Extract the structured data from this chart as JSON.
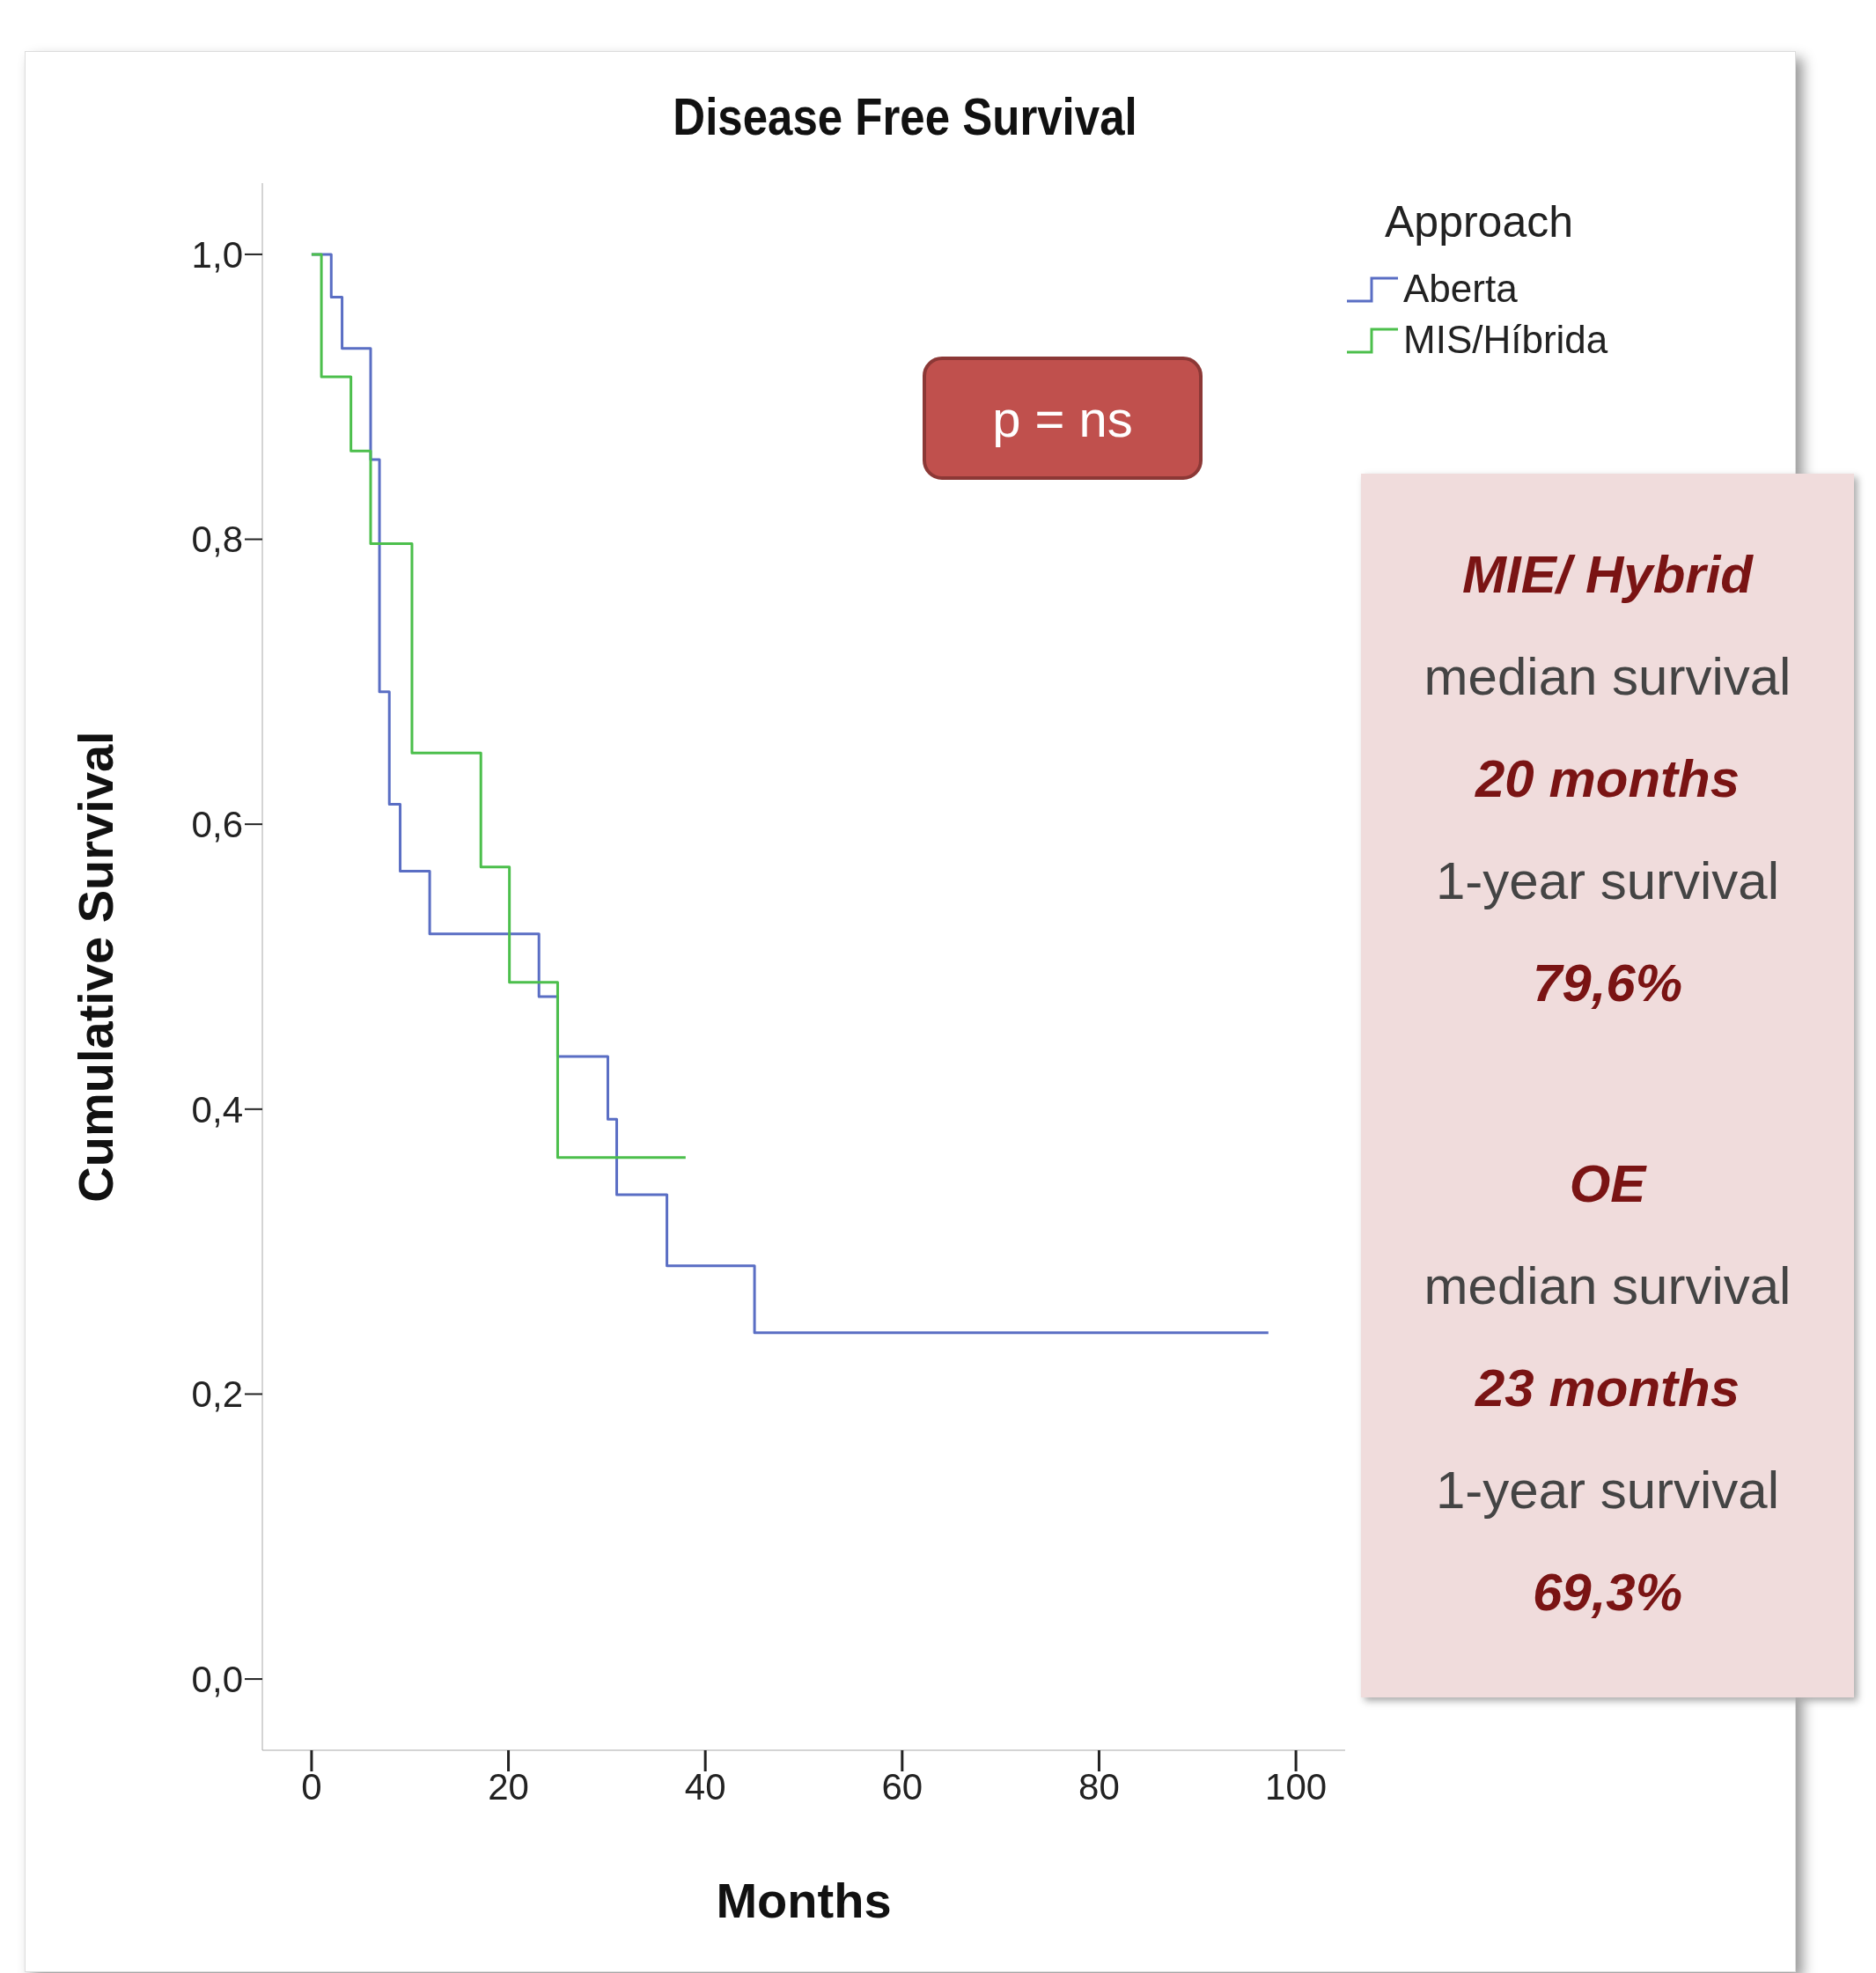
{
  "chart_data": {
    "type": "step",
    "title": "Disease Free Survival",
    "xlabel": "Months",
    "ylabel": "Cumulative Survival",
    "legend_title": "Approach",
    "legend": "top right",
    "grid": false,
    "marker": "none",
    "line_style": "solid",
    "xlim": [
      -5,
      105
    ],
    "xticks": [
      0,
      20,
      40,
      60,
      80,
      100
    ],
    "ylim": [
      -0.05,
      1.05
    ],
    "yticks": [
      {
        "value": 0,
        "label": "0,0"
      },
      {
        "value": 0.2,
        "label": "0,2"
      },
      {
        "value": 0.4,
        "label": "0,4"
      },
      {
        "value": 0.6,
        "label": "0,6"
      },
      {
        "value": 0.8,
        "label": "0,8"
      },
      {
        "value": 1,
        "label": "1,0"
      }
    ],
    "series": [
      {
        "name": "Aberta",
        "color": "#5a6ec4",
        "x": [
          0,
          2,
          3.1,
          6,
          6.9,
          7.9,
          9,
          12,
          23.1,
          25,
          30.1,
          31,
          36.1,
          45,
          97.2
        ],
        "values": [
          1,
          0.97,
          0.934,
          0.856,
          0.693,
          0.614,
          0.567,
          0.523,
          0.479,
          0.437,
          0.393,
          0.34,
          0.29,
          0.243,
          0.243
        ]
      },
      {
        "name": "MIS/Híbrida",
        "color": "#4cbf4c",
        "x": [
          0,
          1,
          4,
          6,
          10.2,
          17.2,
          20.1,
          25,
          38
        ],
        "values": [
          1,
          0.914,
          0.862,
          0.797,
          0.65,
          0.57,
          0.489,
          0.366,
          0.366
        ]
      }
    ],
    "annotations": [
      "p = ns",
      "MIE/ Hybrid",
      "median survival",
      "20 months",
      "1-year survival",
      "79,6%",
      "OE",
      "median survival",
      "23 months",
      "1-year survival",
      "69,3%"
    ]
  }
}
